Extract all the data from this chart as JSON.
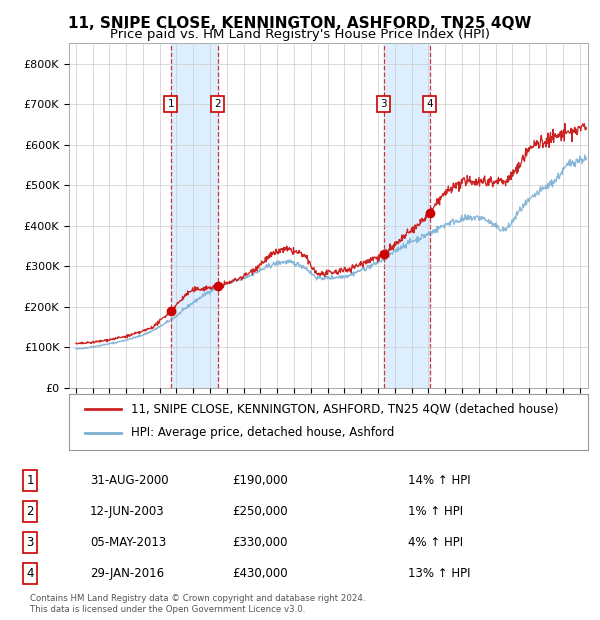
{
  "title": "11, SNIPE CLOSE, KENNINGTON, ASHFORD, TN25 4QW",
  "subtitle": "Price paid vs. HM Land Registry's House Price Index (HPI)",
  "legend_line1": "11, SNIPE CLOSE, KENNINGTON, ASHFORD, TN25 4QW (detached house)",
  "legend_line2": "HPI: Average price, detached house, Ashford",
  "copyright": "Contains HM Land Registry data © Crown copyright and database right 2024.\nThis data is licensed under the Open Government Licence v3.0.",
  "transactions": [
    {
      "num": 1,
      "date": "31-AUG-2000",
      "price": "£190,000",
      "pct": "14% ↑ HPI",
      "x_year": 2000.667,
      "price_val": 190000
    },
    {
      "num": 2,
      "date": "12-JUN-2003",
      "price": "£250,000",
      "pct": "1% ↑ HPI",
      "x_year": 2003.45,
      "price_val": 250000
    },
    {
      "num": 3,
      "date": "05-MAY-2013",
      "price": "£330,000",
      "pct": "4% ↑ HPI",
      "x_year": 2013.34,
      "price_val": 330000
    },
    {
      "num": 4,
      "date": "29-JAN-2016",
      "price": "£430,000",
      "pct": "13% ↑ HPI",
      "x_year": 2016.08,
      "price_val": 430000
    }
  ],
  "yticks": [
    0,
    100000,
    200000,
    300000,
    400000,
    500000,
    600000,
    700000,
    800000
  ],
  "ytick_labels": [
    "£0",
    "£100K",
    "£200K",
    "£300K",
    "£400K",
    "£500K",
    "£600K",
    "£700K",
    "£800K"
  ],
  "xmin": 1994.6,
  "xmax": 2025.5,
  "ymin": 0,
  "ymax": 850000,
  "hpi_color": "#7bafd4",
  "price_color": "#cc2222",
  "dot_color": "#cc0000",
  "vline_color": "#cc2222",
  "shade_color": "#ddeeff",
  "grid_color": "#cccccc",
  "background_color": "#ffffff",
  "title_fontsize": 11,
  "subtitle_fontsize": 9.5,
  "table_fontsize": 8.5,
  "legend_fontsize": 8.5
}
